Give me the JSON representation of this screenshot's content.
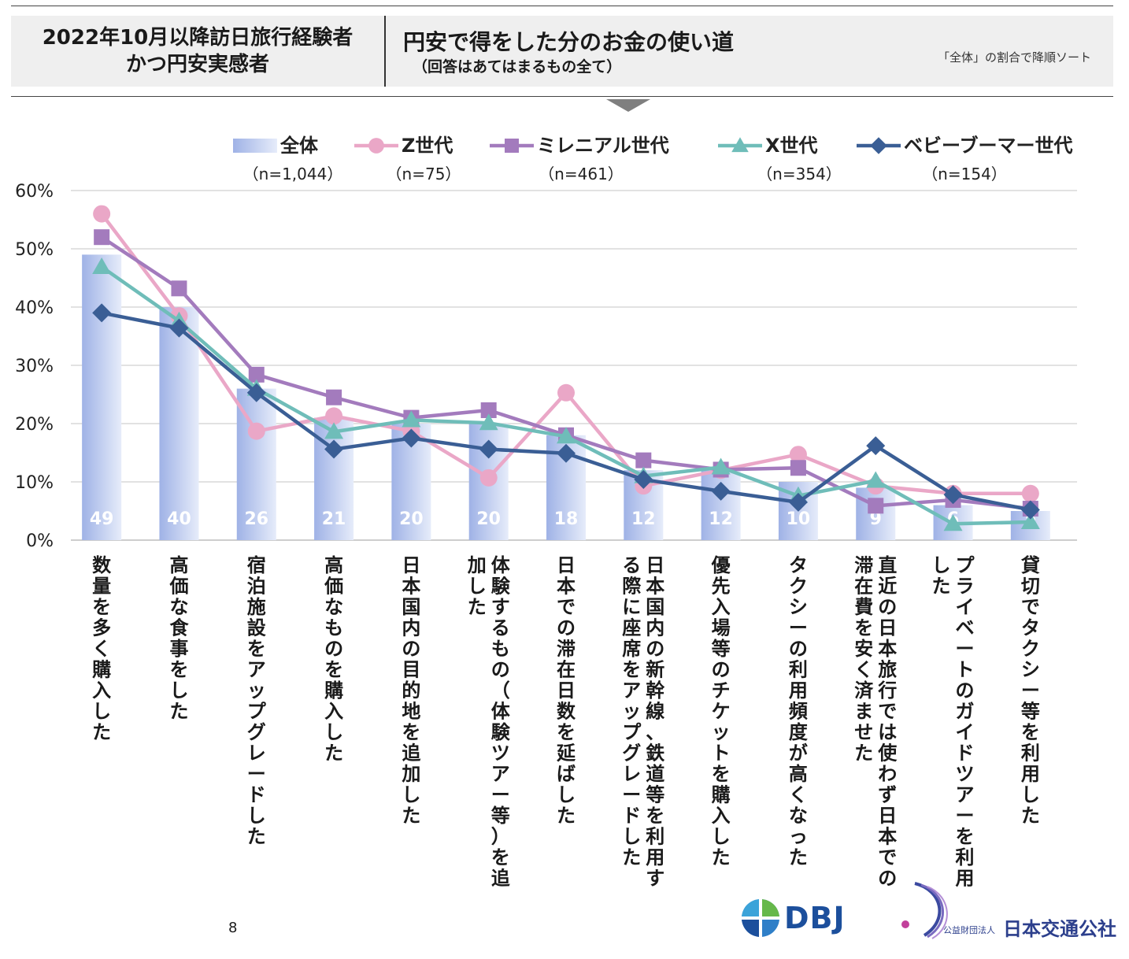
{
  "header": {
    "left_line1": "2022年10月以降訪日旅行経験者",
    "left_line2": "かつ円安実感者",
    "title": "円安で得をした分のお金の使い道",
    "subtitle": "（回答はあてはまるもの全て）",
    "note": "「全体」の割合で降順ソート"
  },
  "chart_data": {
    "type": "bar+line",
    "y_tick_labels": [
      "0%",
      "10%",
      "20%",
      "30%",
      "40%",
      "50%",
      "60%"
    ],
    "ylim": [
      0,
      60
    ],
    "grid": true,
    "legend_position": "top",
    "categories": [
      [
        "数量を多く購入した"
      ],
      [
        "高価な食事をした"
      ],
      [
        "宿泊施設をアップグレードした"
      ],
      [
        "高価なものを購入した"
      ],
      [
        "日本国内の目的地を追加した"
      ],
      [
        "体験するもの（体験ツアー等）を追",
        "加した"
      ],
      [
        "日本での滞在日数を延ばした"
      ],
      [
        "日本国内の新幹線、鉄道等を利用す",
        "る際に座席をアップグレードした"
      ],
      [
        "優先入場等のチケットを購入した"
      ],
      [
        "タクシーの利用頻度が高くなった"
      ],
      [
        "直近の日本旅行では使わず日本での",
        "滞在費を安く済ませた"
      ],
      [
        "プライベートのガイドツアーを利用",
        "した"
      ],
      [
        "貸切でタクシー等を利用した"
      ]
    ],
    "bar_series": {
      "name": "全体",
      "n": "（n=1,044）",
      "values": [
        49,
        40,
        26,
        21,
        20,
        20,
        18,
        12,
        12,
        10,
        9,
        6,
        5
      ],
      "value_labels": [
        "49",
        "40",
        "26",
        "21",
        "20",
        "20",
        "18",
        "12",
        "12",
        "10",
        "9",
        "6",
        "5"
      ]
    },
    "line_series": [
      {
        "name": "Z世代",
        "n": "（n=75）",
        "color": "#eaa7c7",
        "marker": "circle",
        "values": [
          56,
          38.5,
          18.7,
          21.3,
          18.7,
          10.7,
          25.3,
          9.3,
          12.0,
          14.7,
          9.3,
          8.0,
          8.0
        ]
      },
      {
        "name": "ミレニアル世代",
        "n": "（n=461）",
        "color": "#a37bbd",
        "marker": "square",
        "values": [
          52,
          43.2,
          28.4,
          24.5,
          21.0,
          22.3,
          18.0,
          13.7,
          12.1,
          12.4,
          5.9,
          6.9,
          5.4
        ]
      },
      {
        "name": "X世代",
        "n": "（n=354）",
        "color": "#6fbdb9",
        "marker": "triangle",
        "values": [
          46.9,
          37.6,
          26.0,
          18.6,
          20.6,
          20.1,
          17.8,
          11.0,
          12.5,
          7.6,
          10.2,
          2.8,
          3.1
        ]
      },
      {
        "name": "ベビーブーマー世代",
        "n": "（n=154）",
        "color": "#3a5e95",
        "marker": "diamond",
        "values": [
          39.0,
          36.4,
          25.3,
          15.6,
          17.5,
          15.6,
          14.9,
          10.4,
          8.4,
          6.5,
          16.2,
          7.8,
          5.2
        ]
      }
    ]
  },
  "page_number": "8",
  "logos": {
    "dbj": "DBJ",
    "jtb_small": "公益財団法人",
    "jtb_main": "日本交通公社"
  }
}
